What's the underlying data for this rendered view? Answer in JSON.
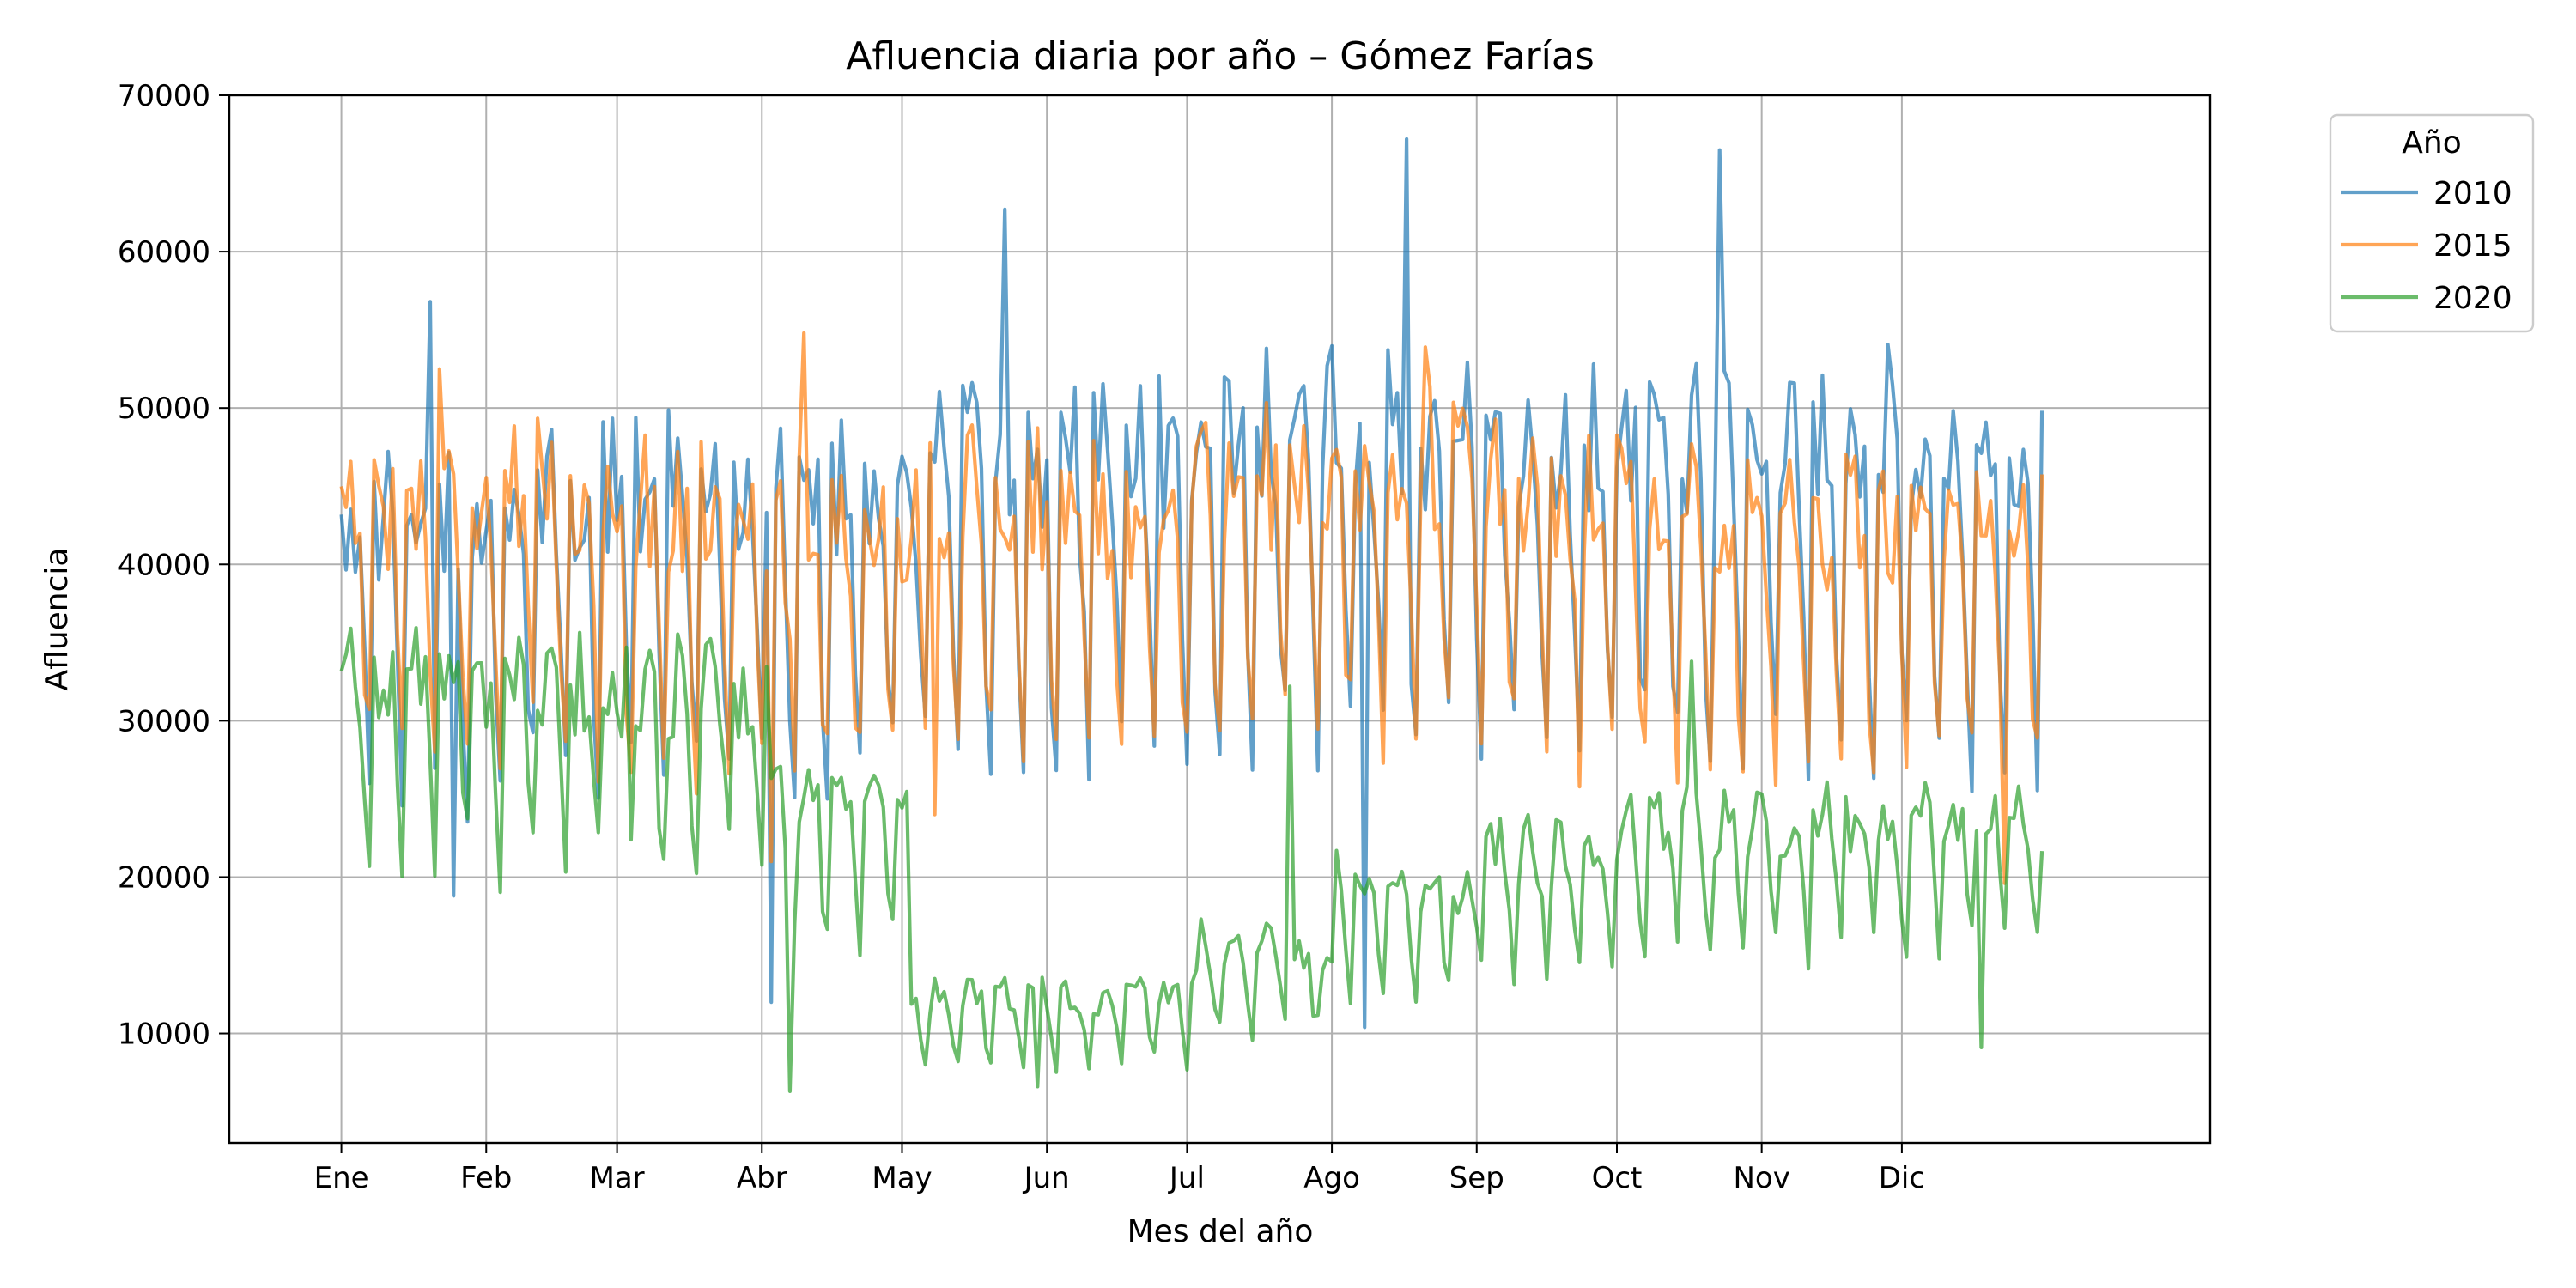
{
  "chart_data": {
    "type": "line",
    "title": "Afluencia diaria por año – Gómez Farías",
    "xlabel": "Mes del año",
    "ylabel": "Afluencia",
    "x_unit": "day_of_year",
    "xlim": [
      -23,
      401
    ],
    "ylim": [
      3000,
      70000
    ],
    "x_ticks": [
      {
        "label": "Ene",
        "day": 1
      },
      {
        "label": "Feb",
        "day": 32
      },
      {
        "label": "Mar",
        "day": 60
      },
      {
        "label": "Abr",
        "day": 91
      },
      {
        "label": "May",
        "day": 121
      },
      {
        "label": "Jun",
        "day": 152
      },
      {
        "label": "Jul",
        "day": 182
      },
      {
        "label": "Ago",
        "day": 213
      },
      {
        "label": "Sep",
        "day": 244
      },
      {
        "label": "Oct",
        "day": 274
      },
      {
        "label": "Nov",
        "day": 305
      },
      {
        "label": "Dic",
        "day": 335
      }
    ],
    "y_ticks": [
      10000,
      20000,
      30000,
      40000,
      50000,
      60000,
      70000
    ],
    "y_tick_labels": [
      "10000",
      "20000",
      "30000",
      "40000",
      "50000",
      "60000",
      "70000"
    ],
    "grid": true,
    "legend": {
      "title": "Año",
      "position": "outside-top-right"
    },
    "series": [
      {
        "name": "2010",
        "color": "#1f77b4",
        "weekly_pattern": [
          1.04,
          1.02,
          1.05,
          1.03,
          0.97,
          0.75,
          0.62
        ],
        "monthly_level": [
          42000,
          43000,
          44000,
          44000,
          45000,
          46000,
          47000,
          47000,
          46000,
          47000,
          47000,
          45000
        ],
        "peaks": [
          {
            "day": 20,
            "value": 56800
          },
          {
            "day": 143,
            "value": 62700
          },
          {
            "day": 229,
            "value": 67200
          },
          {
            "day": 296,
            "value": 66500
          }
        ],
        "dips": [
          {
            "day": 25,
            "value": 18800
          },
          {
            "day": 93,
            "value": 12000
          },
          {
            "day": 220,
            "value": 10400
          }
        ]
      },
      {
        "name": "2015",
        "color": "#ff7f0e",
        "weekly_pattern": [
          1.02,
          1.01,
          1.03,
          1.0,
          0.98,
          0.78,
          0.65
        ],
        "monthly_level": [
          44000,
          44000,
          43000,
          42000,
          44000,
          43000,
          45000,
          46000,
          44000,
          43000,
          42000,
          41000
        ],
        "peaks": [
          {
            "day": 22,
            "value": 52500
          },
          {
            "day": 100,
            "value": 54800
          },
          {
            "day": 233,
            "value": 53900
          }
        ],
        "dips": [
          {
            "day": 93,
            "value": 21000
          },
          {
            "day": 128,
            "value": 24000
          },
          {
            "day": 357,
            "value": 19600
          }
        ]
      },
      {
        "name": "2020",
        "color": "#2ca02c",
        "weekly_pattern": [
          1.02,
          1.03,
          1.05,
          1.04,
          1.0,
          0.82,
          0.68
        ],
        "monthly_level": [
          32000,
          31000,
          31000,
          24000,
          12000,
          12000,
          15000,
          19000,
          21000,
          23000,
          23000,
          23000
        ],
        "peaks": [
          {
            "day": 62,
            "value": 34700
          },
          {
            "day": 204,
            "value": 32200
          },
          {
            "day": 290,
            "value": 33800
          }
        ],
        "dips": [
          {
            "day": 97,
            "value": 6300
          },
          {
            "day": 150,
            "value": 6600
          },
          {
            "day": 352,
            "value": 9100
          }
        ]
      }
    ]
  }
}
